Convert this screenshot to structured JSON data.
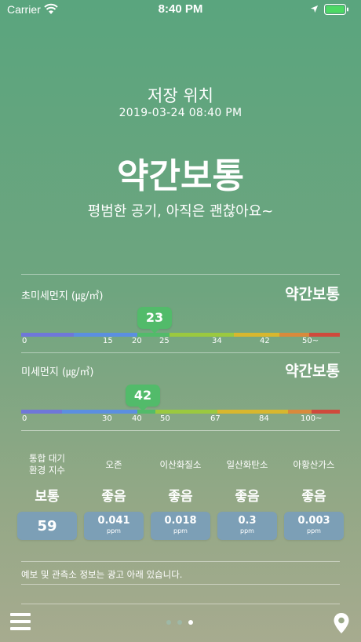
{
  "status_bar": {
    "carrier": "Carrier",
    "time": "8:40 PM"
  },
  "header": {
    "station": "저장 위치",
    "timestamp": "2019-03-24 08:40 PM",
    "status": "약간보통",
    "message": "평범한 공기, 아직은 괜찮아요~"
  },
  "pm25": {
    "label": "초미세먼지 (㎍/㎥)",
    "status": "약간보통",
    "value": "23",
    "ticks": [
      "0",
      "15",
      "20",
      "25",
      "34",
      "42",
      "50~"
    ]
  },
  "pm10": {
    "label": "미세먼지 (㎍/㎥)",
    "status": "약간보통",
    "value": "42",
    "ticks": [
      "0",
      "30",
      "40",
      "50",
      "67",
      "84",
      "100~"
    ]
  },
  "indices": [
    {
      "name": "통합 대기 환경 지수",
      "status": "보통",
      "value": "59",
      "unit": ""
    },
    {
      "name": "오존",
      "status": "좋음",
      "value": "0.041",
      "unit": "ppm"
    },
    {
      "name": "이산화질소",
      "status": "좋음",
      "value": "0.018",
      "unit": "ppm"
    },
    {
      "name": "일산화탄소",
      "status": "좋음",
      "value": "0.3",
      "unit": "ppm"
    },
    {
      "name": "아황산가스",
      "status": "좋음",
      "value": "0.003",
      "unit": "ppm"
    }
  ],
  "notice": "예보 및 관측소 정보는 광고 아래 있습니다.",
  "pager": {
    "current_page": 3,
    "total_pages": 3
  },
  "colors": {
    "bar_segments": [
      "#6f77d9",
      "#5b8fe0",
      "#52bb6a",
      "#9bc93f",
      "#d8b72e",
      "#d98a3c",
      "#cf4a3c"
    ],
    "bubble": "#52bb6a",
    "value_box": "#7c9fb6",
    "dot_active": "#ffffff",
    "dot_inactive": "#9eb8a6"
  },
  "icons": [
    "wifi-icon",
    "location-arrow-icon",
    "battery-icon",
    "menu-icon",
    "location-pin-icon"
  ]
}
